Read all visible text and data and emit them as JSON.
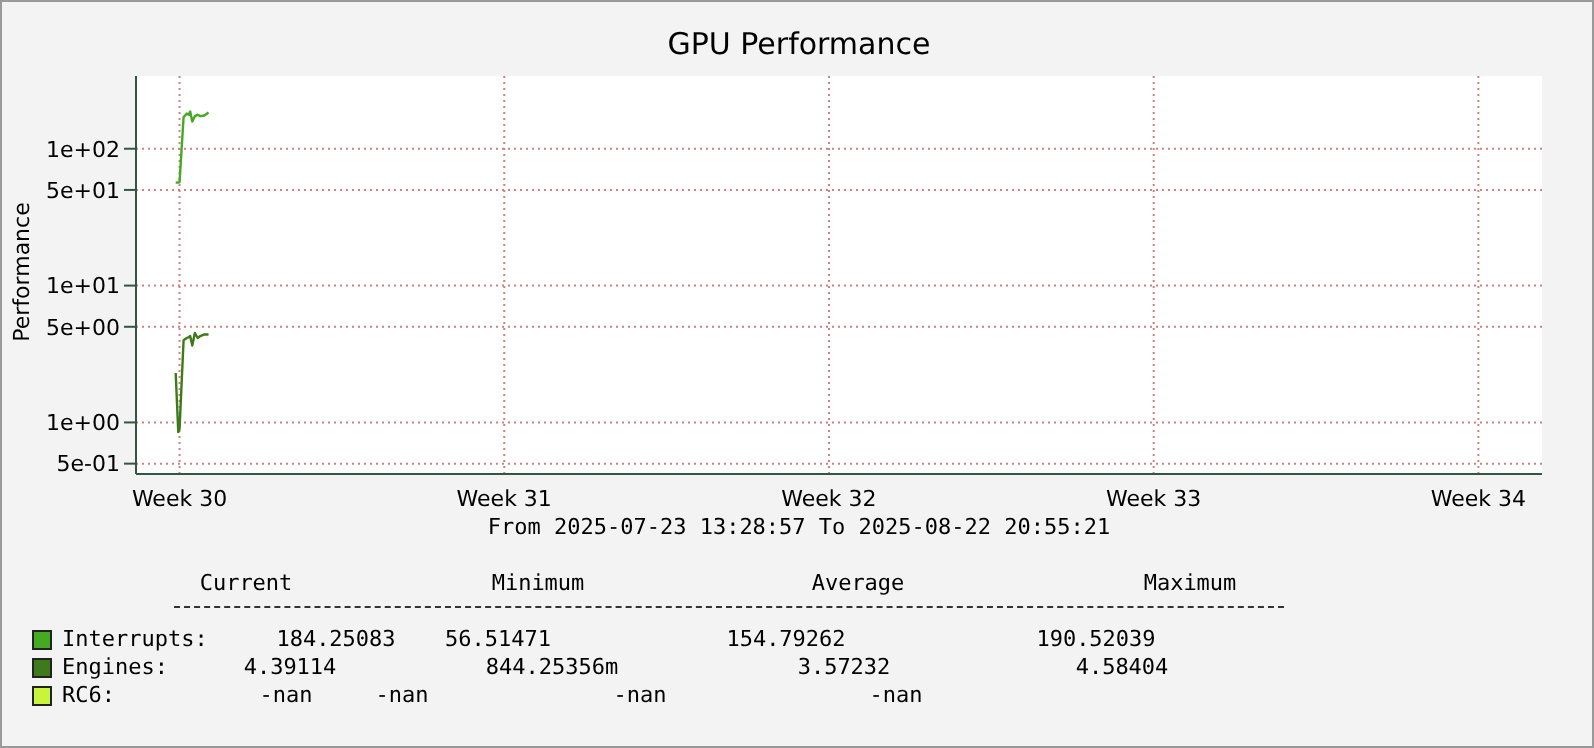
{
  "chart_data": {
    "type": "line",
    "title": "GPU Performance",
    "ylabel": "Performance",
    "x": [
      "2025-07-24T10:00",
      "2025-07-24T11:20",
      "2025-07-24T12:00",
      "2025-07-24T14:05",
      "2025-07-24T15:45",
      "2025-07-24T16:50",
      "2025-07-24T17:30",
      "2025-07-24T18:35",
      "2025-07-24T19:55",
      "2025-07-24T21:25",
      "2025-07-24T22:45",
      "2025-07-25T00:50",
      "2025-07-25T03:00"
    ],
    "series": [
      {
        "name": "Interrupts:",
        "color": "#44aa22",
        "values": [
          56.5,
          56.6,
          57,
          170,
          181,
          177,
          187,
          158,
          173,
          177,
          173,
          175,
          184
        ]
      },
      {
        "name": "Engines:",
        "color": "#3d7a1a",
        "values": [
          2.3,
          0.85,
          0.9,
          3.99,
          4.14,
          4.2,
          4.28,
          3.65,
          4.5,
          4.14,
          4.28,
          4.4,
          4.39
        ]
      },
      {
        "name": "RC6:",
        "color": "#c8f53c",
        "values": [
          null,
          null,
          null,
          null,
          null,
          null,
          null,
          null,
          null,
          null,
          null,
          null,
          null
        ]
      }
    ],
    "log": "y",
    "ylim": [
      0.42,
      340
    ],
    "yticks": [
      {
        "value": 0.5,
        "label": "5e-01"
      },
      {
        "value": 1,
        "label": "1e+00"
      },
      {
        "value": 5,
        "label": "5e+00"
      },
      {
        "value": 10,
        "label": "1e+01"
      },
      {
        "value": 50,
        "label": "5e+01"
      },
      {
        "value": 100,
        "label": "1e+02"
      }
    ],
    "xlim": [
      "2025-07-23T13:28",
      "2025-08-22T20:55"
    ],
    "xticks": [
      {
        "value": "2025-07-24T12:00",
        "label": "Week 30"
      },
      {
        "value": "2025-07-31T12:00",
        "label": "Week 31"
      },
      {
        "value": "2025-08-07T12:00",
        "label": "Week 32"
      },
      {
        "value": "2025-08-14T12:00",
        "label": "Week 33"
      },
      {
        "value": "2025-08-21T12:00",
        "label": "Week 34"
      }
    ],
    "grid": true,
    "legend": "bottom",
    "marker": "none",
    "line_style": "solid",
    "annotations": [
      "From 2025-07-23 13:28:57 To 2025-08-22 20:55:21",
      "Current",
      "Minimum",
      "Average",
      "Maximum",
      "184.25083",
      "56.51471",
      "154.79262",
      "190.52039",
      "4.39114",
      "844.25356m",
      "3.57232",
      "4.58404",
      "-nan",
      "-nan",
      "-nan",
      "-nan"
    ]
  }
}
